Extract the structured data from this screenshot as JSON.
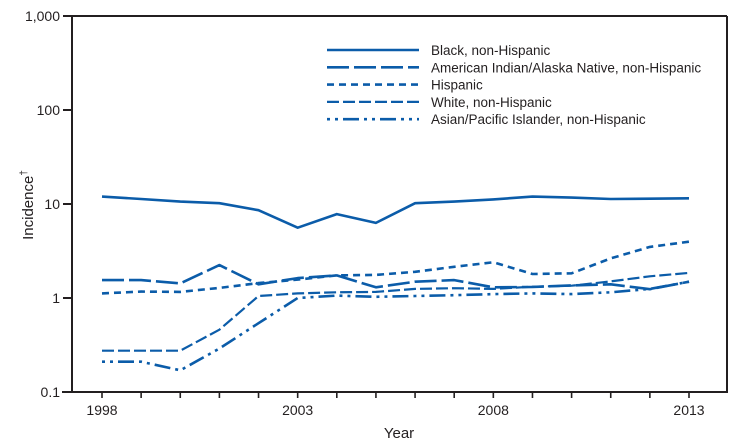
{
  "chart_data": {
    "type": "line",
    "title": "",
    "xlabel": "Year",
    "ylabel": "Incidence",
    "ylabel_superscript": "†",
    "yscale": "log",
    "ylim": [
      0.1,
      1000
    ],
    "xlim": [
      1998,
      2013
    ],
    "grid": false,
    "legend_position": "top-right",
    "y_ticks": [
      {
        "value": 0.1,
        "label": "0.1"
      },
      {
        "value": 1,
        "label": "1"
      },
      {
        "value": 10,
        "label": "10"
      },
      {
        "value": 100,
        "label": "100"
      },
      {
        "value": 1000,
        "label": "1,000"
      }
    ],
    "x_ticks": [
      1998,
      1999,
      2000,
      2001,
      2002,
      2003,
      2004,
      2005,
      2006,
      2007,
      2008,
      2009,
      2010,
      2011,
      2012,
      2013
    ],
    "x_tick_labels": [
      {
        "value": 1998,
        "label": "1998"
      },
      {
        "value": 2003,
        "label": "2003"
      },
      {
        "value": 2008,
        "label": "2008"
      },
      {
        "value": 2013,
        "label": "2013"
      }
    ],
    "x": [
      1998,
      1999,
      2000,
      2001,
      2002,
      2003,
      2004,
      2005,
      2006,
      2007,
      2008,
      2009,
      2010,
      2011,
      2012,
      2013
    ],
    "series": [
      {
        "name": "Black, non-Hispanic",
        "style": "solid",
        "values": [
          12.0,
          11.3,
          10.6,
          10.2,
          8.6,
          5.6,
          7.8,
          6.3,
          10.2,
          10.6,
          11.2,
          12.0,
          11.7,
          11.3,
          11.4,
          11.5
        ]
      },
      {
        "name": "American Indian/Alaska Native, non-Hispanic",
        "style": "long-dash",
        "values": [
          1.55,
          1.55,
          1.43,
          2.24,
          1.4,
          1.63,
          1.74,
          1.3,
          1.49,
          1.55,
          1.3,
          1.31,
          1.36,
          1.4,
          1.24,
          1.49
        ]
      },
      {
        "name": "Hispanic",
        "style": "short-dash",
        "values": [
          1.12,
          1.17,
          1.16,
          1.28,
          1.44,
          1.57,
          1.74,
          1.76,
          1.9,
          2.15,
          2.4,
          1.8,
          1.83,
          2.64,
          3.5,
          3.97
        ]
      },
      {
        "name": "White, non-Hispanic",
        "style": "medium-dash",
        "values": [
          0.275,
          0.275,
          0.275,
          0.46,
          1.05,
          1.12,
          1.15,
          1.16,
          1.25,
          1.27,
          1.25,
          1.32,
          1.35,
          1.5,
          1.7,
          1.85
        ]
      },
      {
        "name": "Asian/Pacific Islander, non-Hispanic",
        "style": "dot-dash",
        "values": [
          0.21,
          0.21,
          0.17,
          0.29,
          0.54,
          1.0,
          1.06,
          1.03,
          1.05,
          1.07,
          1.1,
          1.12,
          1.1,
          1.15,
          1.25,
          1.49
        ]
      }
    ],
    "colors": {
      "line": "#0b5ca9",
      "axis": "#231f20"
    }
  }
}
